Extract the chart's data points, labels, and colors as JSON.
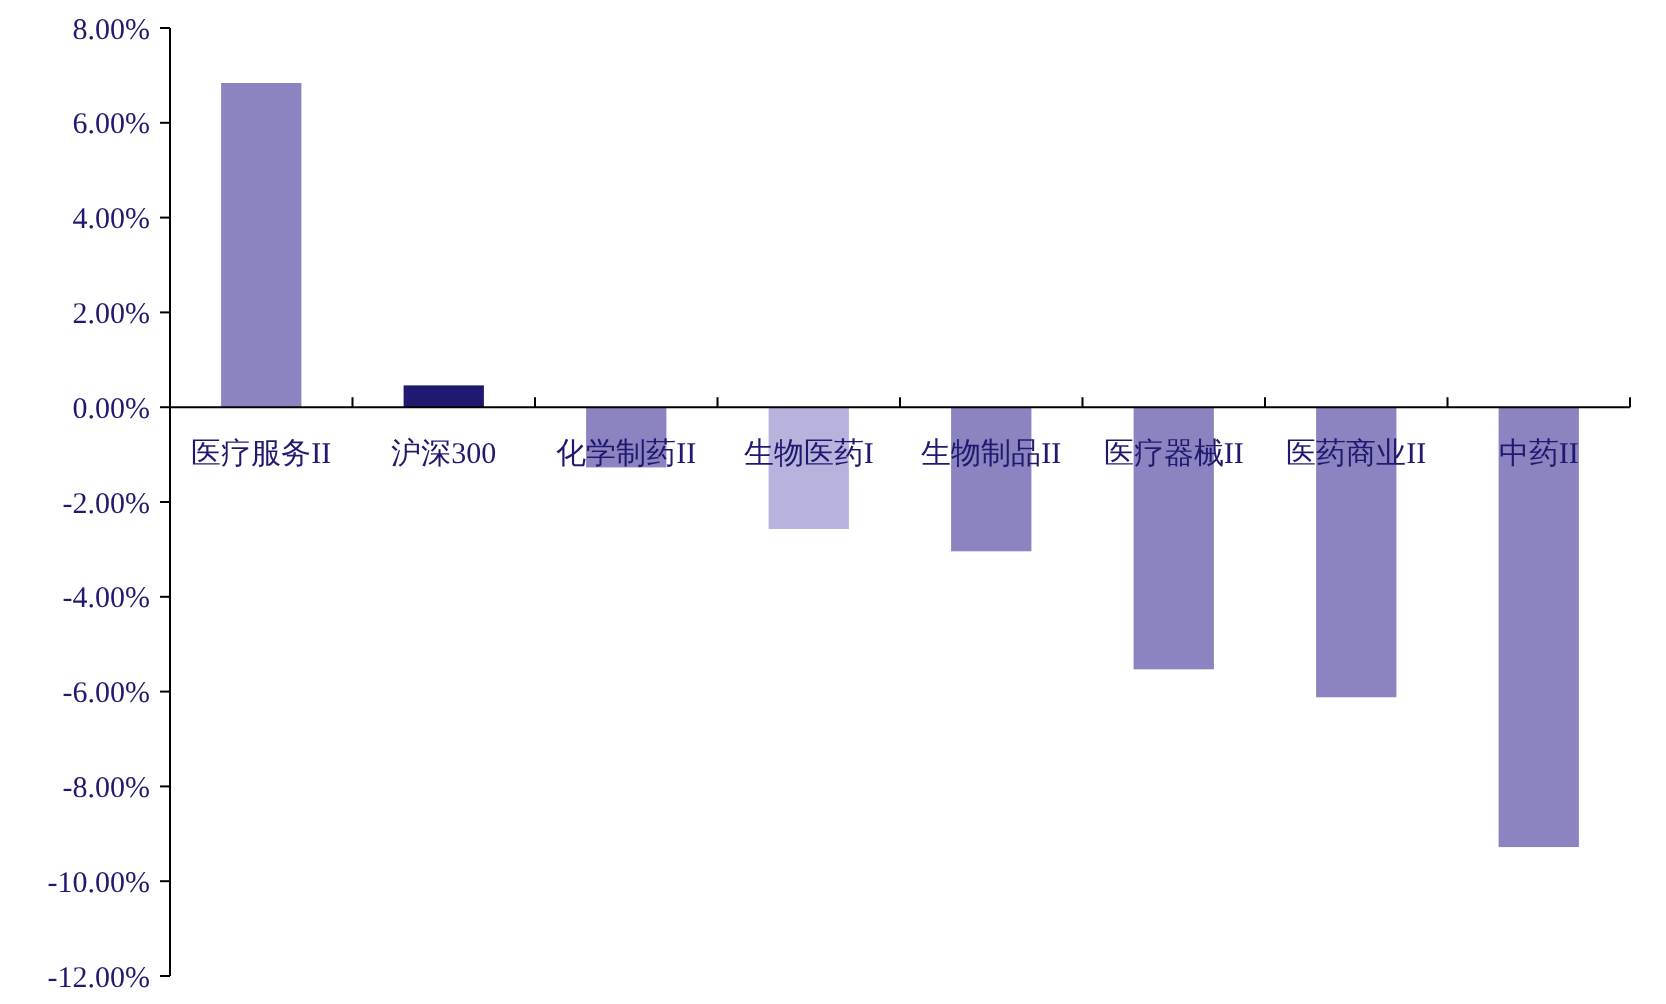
{
  "chart_data": {
    "type": "bar",
    "categories": [
      "医疗服务II",
      "沪深300",
      "化学制药II",
      "生物医药I",
      "生物制品II",
      "医疗器械II",
      "医药商业II",
      "中药II"
    ],
    "values": [
      6.84,
      0.46,
      -1.27,
      -2.57,
      -3.04,
      -5.53,
      -6.12,
      -9.28
    ],
    "colors": [
      "#8b84c0",
      "#1f1a70",
      "#8b84c0",
      "#b8b3dc",
      "#8b84c0",
      "#8b84c0",
      "#8b84c0",
      "#8b84c0"
    ],
    "ylim": [
      -12,
      8
    ],
    "yticks": [
      {
        "value": -12,
        "label": "-12.00%"
      },
      {
        "value": -10,
        "label": "-10.00%"
      },
      {
        "value": -8,
        "label": "-8.00%"
      },
      {
        "value": -6,
        "label": "-6.00%"
      },
      {
        "value": -4,
        "label": "-4.00%"
      },
      {
        "value": -2,
        "label": "-2.00%"
      },
      {
        "value": 0,
        "label": "0.00%"
      },
      {
        "value": 2,
        "label": "2.00%"
      },
      {
        "value": 4,
        "label": "4.00%"
      },
      {
        "value": 6,
        "label": "6.00%"
      },
      {
        "value": 8,
        "label": "8.00%"
      }
    ],
    "grid": false
  }
}
